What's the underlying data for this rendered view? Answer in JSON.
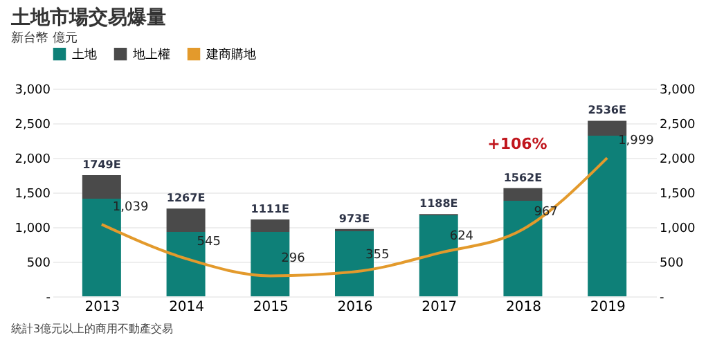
{
  "chart_data": {
    "type": "bar",
    "title": "土地市場交易爆量",
    "ylabel": "新台幣 億元",
    "categories": [
      "2013",
      "2014",
      "2015",
      "2016",
      "2017",
      "2018",
      "2019"
    ],
    "stacked": true,
    "series": [
      {
        "name": "土地",
        "color": "#0e8078",
        "values": [
          1410,
          930,
          930,
          940,
          1170,
          1380,
          2320
        ]
      },
      {
        "name": "地上權",
        "color": "#4a4a4a",
        "values": [
          339,
          337,
          181,
          33,
          18,
          182,
          216
        ]
      },
      {
        "name": "建商購地",
        "type": "line",
        "color": "#e39a2c",
        "values": [
          1039,
          545,
          296,
          355,
          624,
          967,
          1999
        ],
        "value_labels": [
          "1,039",
          "545",
          "296",
          "355",
          "624",
          "967",
          "1,999"
        ]
      }
    ],
    "totals": [
      "1749E",
      "1267E",
      "1111E",
      "973E",
      "1188E",
      "1562E",
      "2536E"
    ],
    "ylim": [
      0,
      3000
    ],
    "yticks": [
      {
        "value": 0,
        "label": "-"
      },
      500,
      {
        "value": 1000,
        "label": "1,000"
      },
      {
        "value": 1500,
        "label": "1,500"
      },
      {
        "value": 2000,
        "label": "2,000"
      },
      {
        "value": 2500,
        "label": "2,500"
      },
      {
        "value": 3000,
        "label": "3,000"
      }
    ],
    "y2lim": [
      0,
      3000
    ],
    "y2ticks": [
      {
        "value": 0,
        "label": "-"
      },
      500,
      {
        "value": 1000,
        "label": "1,000"
      },
      {
        "value": 1500,
        "label": "1,500"
      },
      {
        "value": 2000,
        "label": "2,000"
      },
      {
        "value": 2500,
        "label": "2,500"
      },
      {
        "value": 3000,
        "label": "3,000"
      }
    ],
    "grid": "y",
    "legend": "top",
    "annotations": [
      "+106%",
      "統計3億元以上的商用不動產交易"
    ]
  }
}
